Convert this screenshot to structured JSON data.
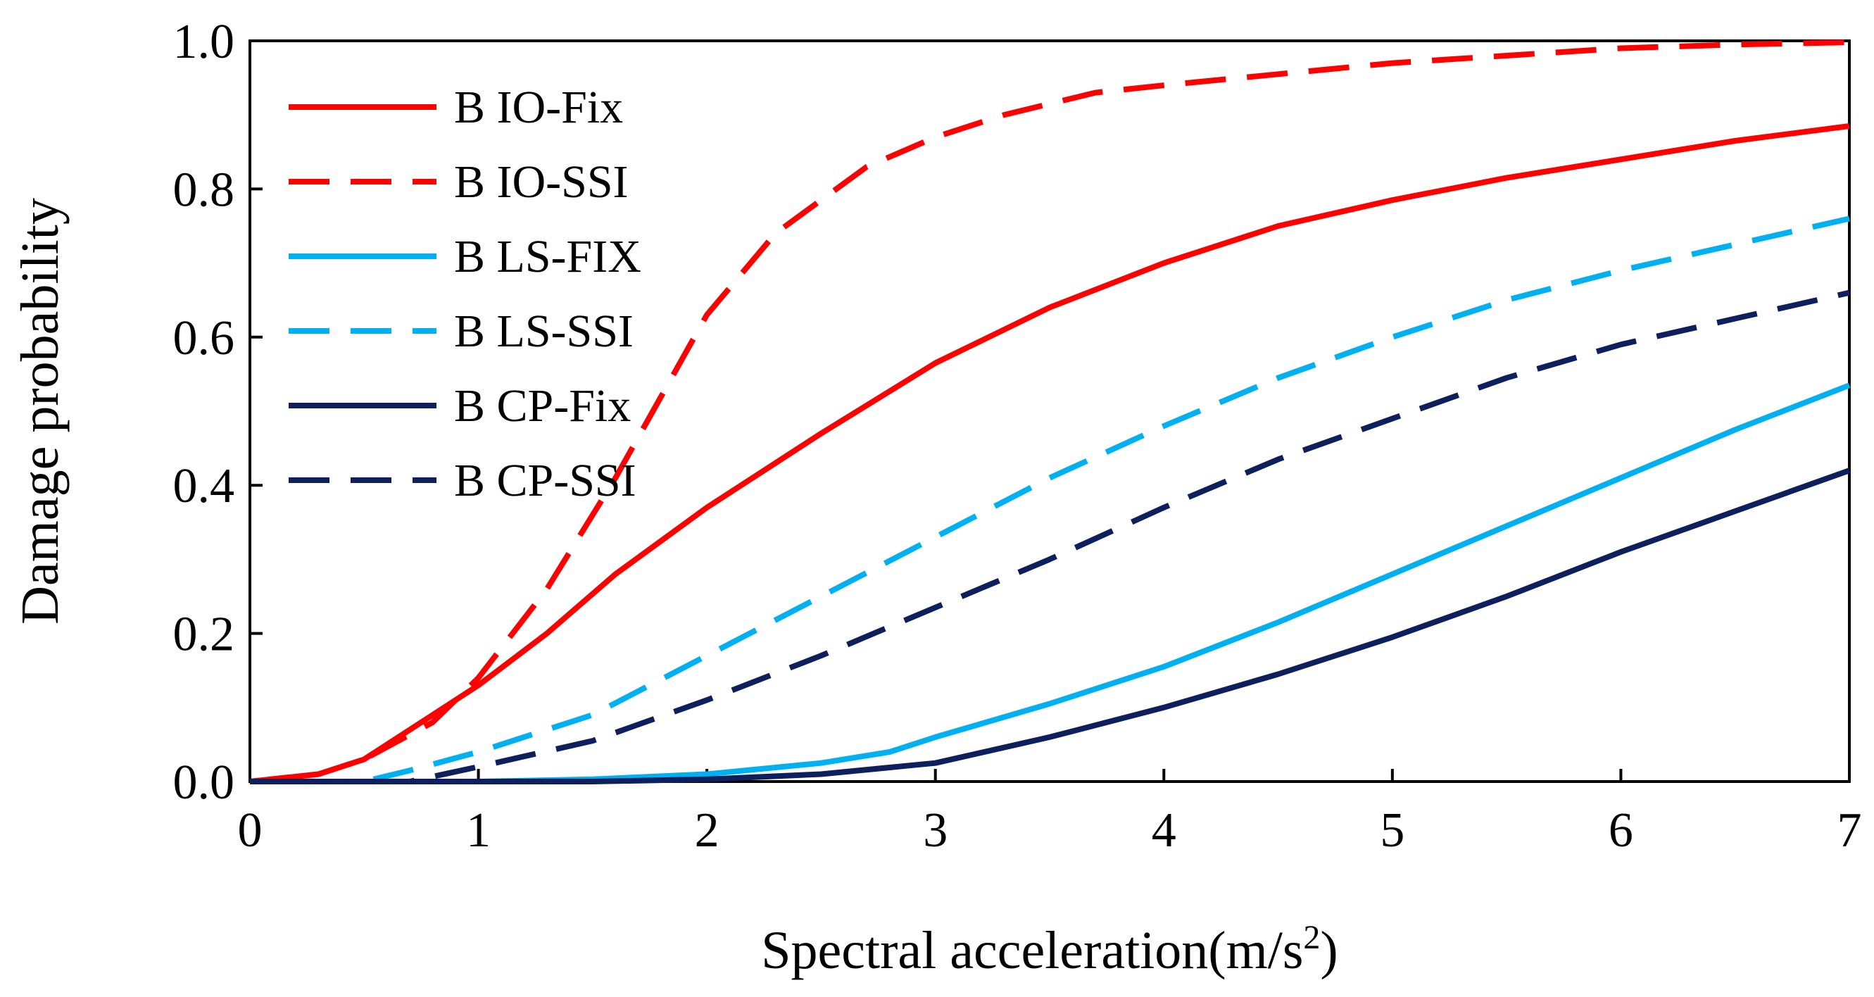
{
  "chart_data": {
    "type": "line",
    "title": "",
    "xlabel": "Spectral acceleration(m/s",
    "xlabel_superscript": "2",
    "xlabel_suffix": ")",
    "ylabel": "Damage probability",
    "xlim": [
      0,
      7
    ],
    "ylim": [
      0,
      1
    ],
    "xticks": [
      "0",
      "1",
      "2",
      "3",
      "4",
      "5",
      "6",
      "7"
    ],
    "yticks": [
      "0.0",
      "0.2",
      "0.4",
      "0.6",
      "0.8",
      "1.0"
    ],
    "xtick_values": [
      0,
      1,
      2,
      3,
      4,
      5,
      6,
      7
    ],
    "ytick_values": [
      0,
      0.2,
      0.4,
      0.6,
      0.8,
      1.0
    ],
    "grid": false,
    "legend_position": "top-left",
    "series": [
      {
        "name": "B IO-Fix",
        "color": "#ff0000",
        "dash": "solid",
        "x": [
          0,
          0.3,
          0.5,
          0.7,
          1.0,
          1.3,
          1.6,
          2.0,
          2.5,
          3.0,
          3.5,
          4.0,
          4.5,
          5.0,
          5.5,
          6.0,
          6.5,
          7.0
        ],
        "y": [
          0,
          0.01,
          0.03,
          0.07,
          0.13,
          0.2,
          0.28,
          0.37,
          0.47,
          0.565,
          0.64,
          0.7,
          0.75,
          0.785,
          0.815,
          0.84,
          0.865,
          0.885
        ]
      },
      {
        "name": "B IO-SSI",
        "color": "#ff0000",
        "dash": "dashed",
        "x": [
          0,
          0.3,
          0.5,
          0.8,
          1.0,
          1.3,
          1.6,
          1.8,
          2.0,
          2.3,
          2.7,
          3.0,
          3.3,
          3.7,
          4.0,
          4.5,
          5.0,
          5.5,
          6.0,
          6.5,
          7.0
        ],
        "y": [
          0,
          0.01,
          0.03,
          0.08,
          0.14,
          0.26,
          0.41,
          0.52,
          0.63,
          0.74,
          0.83,
          0.87,
          0.9,
          0.93,
          0.94,
          0.955,
          0.97,
          0.98,
          0.99,
          0.995,
          0.998
        ]
      },
      {
        "name": "B LS-FIX",
        "color": "#00b0f0",
        "dash": "solid",
        "x": [
          0,
          0.5,
          1.0,
          1.5,
          2.0,
          2.5,
          2.8,
          3.0,
          3.5,
          4.0,
          4.5,
          5.0,
          5.5,
          6.0,
          6.5,
          7.0
        ],
        "y": [
          0,
          0,
          0,
          0.003,
          0.01,
          0.025,
          0.04,
          0.06,
          0.105,
          0.155,
          0.215,
          0.28,
          0.345,
          0.41,
          0.475,
          0.535
        ]
      },
      {
        "name": "B LS-SSI",
        "color": "#00b0f0",
        "dash": "dashed",
        "x": [
          0,
          0.5,
          0.7,
          1.0,
          1.5,
          2.0,
          2.5,
          3.0,
          3.5,
          4.0,
          4.5,
          5.0,
          5.5,
          6.0,
          6.5,
          7.0
        ],
        "y": [
          0,
          0,
          0.015,
          0.04,
          0.09,
          0.17,
          0.25,
          0.33,
          0.41,
          0.48,
          0.545,
          0.6,
          0.65,
          0.69,
          0.725,
          0.76
        ]
      },
      {
        "name": "B CP-Fix",
        "color": "#0d1f5c",
        "dash": "solid",
        "x": [
          0,
          0.5,
          1.0,
          1.5,
          2.0,
          2.5,
          3.0,
          3.5,
          4.0,
          4.5,
          5.0,
          5.5,
          6.0,
          6.5,
          7.0
        ],
        "y": [
          0,
          0,
          0,
          0,
          0.003,
          0.01,
          0.025,
          0.06,
          0.1,
          0.145,
          0.195,
          0.25,
          0.31,
          0.365,
          0.42
        ]
      },
      {
        "name": "B CP-SSI",
        "color": "#0d1f5c",
        "dash": "dashed",
        "x": [
          0,
          0.7,
          1.0,
          1.5,
          2.0,
          2.5,
          3.0,
          3.5,
          4.0,
          4.5,
          5.0,
          5.5,
          6.0,
          6.5,
          7.0
        ],
        "y": [
          0,
          0,
          0.02,
          0.055,
          0.11,
          0.17,
          0.235,
          0.3,
          0.37,
          0.435,
          0.49,
          0.545,
          0.59,
          0.625,
          0.66
        ]
      }
    ]
  }
}
